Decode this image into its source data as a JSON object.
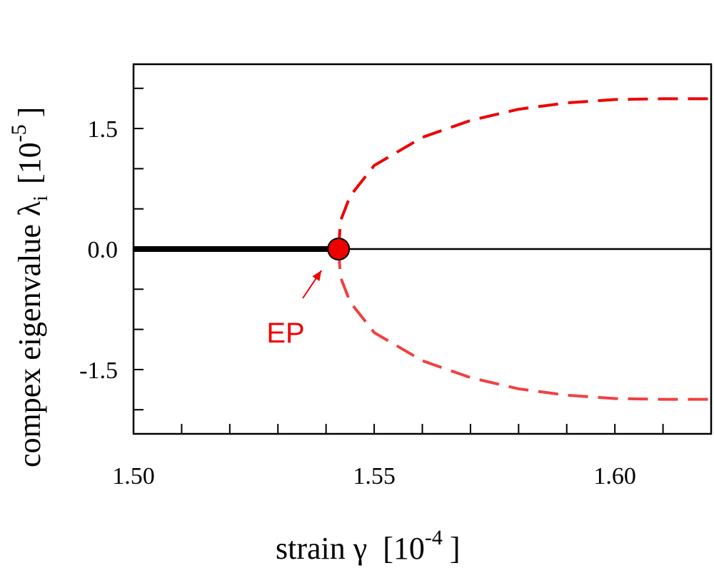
{
  "chart_data": {
    "type": "line",
    "xlabel": "strain γ",
    "xunit_base": "[10",
    "xunit_exp": "-4",
    "xunit_close": "]",
    "ylabel": "compex eigenvalue λ",
    "ylabel_sub": "i",
    "yunit_base": "[10",
    "yunit_exp": "-5",
    "yunit_close": "]",
    "xlim": [
      1.5,
      1.62
    ],
    "ylim": [
      -2.3,
      2.3
    ],
    "x_ticks": [
      {
        "value": 1.5,
        "label": "1.50"
      },
      {
        "value": 1.55,
        "label": "1.55"
      },
      {
        "value": 1.6,
        "label": "1.60"
      }
    ],
    "x_minor_ticks": [
      1.51,
      1.52,
      1.53,
      1.54,
      1.56,
      1.57,
      1.58,
      1.59,
      1.61
    ],
    "y_ticks": [
      {
        "value": 1.5,
        "label": "1.5"
      },
      {
        "value": 0.0,
        "label": "0.0"
      },
      {
        "value": -1.5,
        "label": "-1.5"
      }
    ],
    "y_minor_ticks": [
      2.0,
      1.0,
      0.5,
      -0.5,
      -1.0,
      -2.0
    ],
    "series": [
      {
        "style": "solid-thick",
        "color": "#000000",
        "x": [
          1.5,
          1.5426
        ],
        "y": [
          0.0,
          0.0
        ]
      },
      {
        "style": "solid-thin",
        "color": "#000000",
        "x": [
          1.5426,
          1.62
        ],
        "y": [
          0.0,
          0.0
        ]
      },
      {
        "style": "dashed",
        "color": "#ee0000",
        "x": [
          1.5426,
          1.543,
          1.545,
          1.55,
          1.56,
          1.57,
          1.58,
          1.59,
          1.6,
          1.61,
          1.62
        ],
        "y": [
          0.0,
          0.35,
          0.66,
          1.04,
          1.39,
          1.6,
          1.74,
          1.82,
          1.86,
          1.87,
          1.87
        ]
      },
      {
        "style": "dashed",
        "color": "#f24040",
        "x": [
          1.5426,
          1.543,
          1.545,
          1.55,
          1.56,
          1.57,
          1.58,
          1.59,
          1.6,
          1.61,
          1.62
        ],
        "y": [
          0.0,
          -0.35,
          -0.66,
          -1.04,
          -1.39,
          -1.6,
          -1.74,
          -1.82,
          -1.86,
          -1.87,
          -1.87
        ]
      }
    ],
    "annotations": [
      {
        "text": "EP",
        "color": "#ee0000",
        "point_x": 1.5426,
        "point_y": 0.0
      }
    ]
  }
}
